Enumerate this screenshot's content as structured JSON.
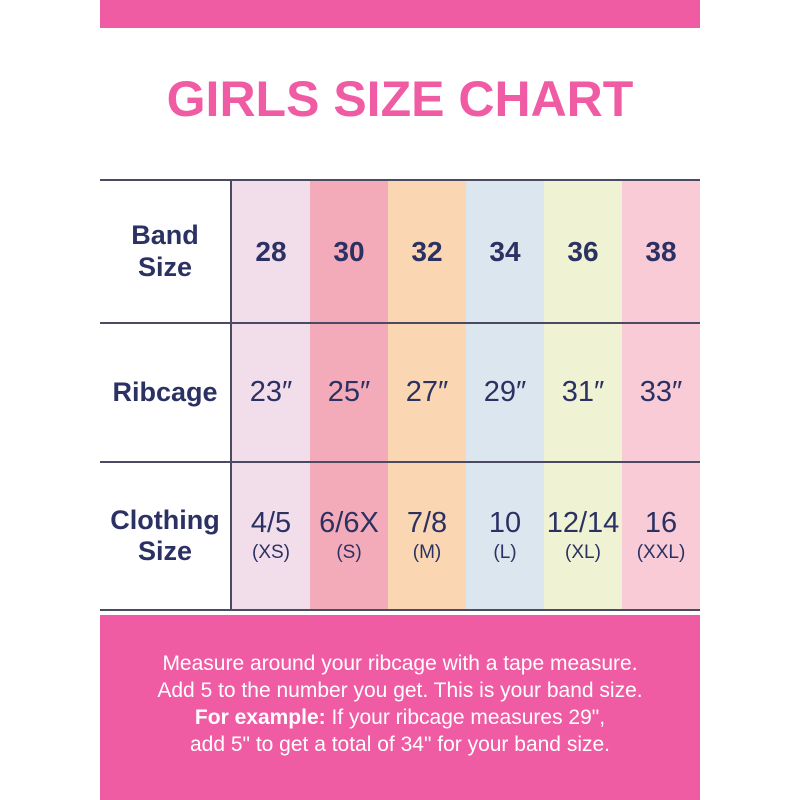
{
  "header": {
    "title": "GIRLS SIZE CHART"
  },
  "colors": {
    "pink": "#F05CA4",
    "navy": "#2B3163",
    "line": "#4A4A63",
    "column_colors": [
      "#F2DEEB",
      "#F4ABB9",
      "#FAD7B2",
      "#DCE6EF",
      "#EFF3D3",
      "#F8CBD7"
    ]
  },
  "table": {
    "band_size": {
      "label_line1": "Band",
      "label_line2": "Size",
      "values": [
        "28",
        "30",
        "32",
        "34",
        "36",
        "38"
      ]
    },
    "ribcage": {
      "label": "Ribcage",
      "values": [
        "23″",
        "25″",
        "27″",
        "29″",
        "31″",
        "33″"
      ]
    },
    "clothing_size": {
      "label_line1": "Clothing",
      "label_line2": "Size",
      "values": [
        "4/5",
        "6/6X",
        "7/8",
        "10",
        "12/14",
        "16"
      ],
      "sub_values": [
        "(XS)",
        "(S)",
        "(M)",
        "(L)",
        "(XL)",
        "(XXL)"
      ]
    }
  },
  "footer": {
    "line1": "Measure around your ribcage with a tape measure.",
    "line2": "Add 5 to the number you get. This is your band size.",
    "line3_bold": "For example:",
    "line3_text": "If your ribcage measures 29\",",
    "line4": "add 5\" to get a total of 34\" for your band size."
  },
  "chart_data": {
    "type": "table",
    "title": "GIRLS SIZE CHART",
    "columns": [
      "Band Size",
      "28",
      "30",
      "32",
      "34",
      "36",
      "38"
    ],
    "rows": [
      [
        "Ribcage",
        "23″",
        "25″",
        "27″",
        "29″",
        "31″",
        "33″"
      ],
      [
        "Clothing Size",
        "4/5 (XS)",
        "6/6X (S)",
        "7/8 (M)",
        "10 (L)",
        "12/14 (XL)",
        "16 (XXL)"
      ]
    ],
    "notes": "Measure around your ribcage with a tape measure. Add 5 to the number you get. This is your band size. For example: If your ribcage measures 29\", add 5\" to get a total of 34\" for your band size."
  }
}
